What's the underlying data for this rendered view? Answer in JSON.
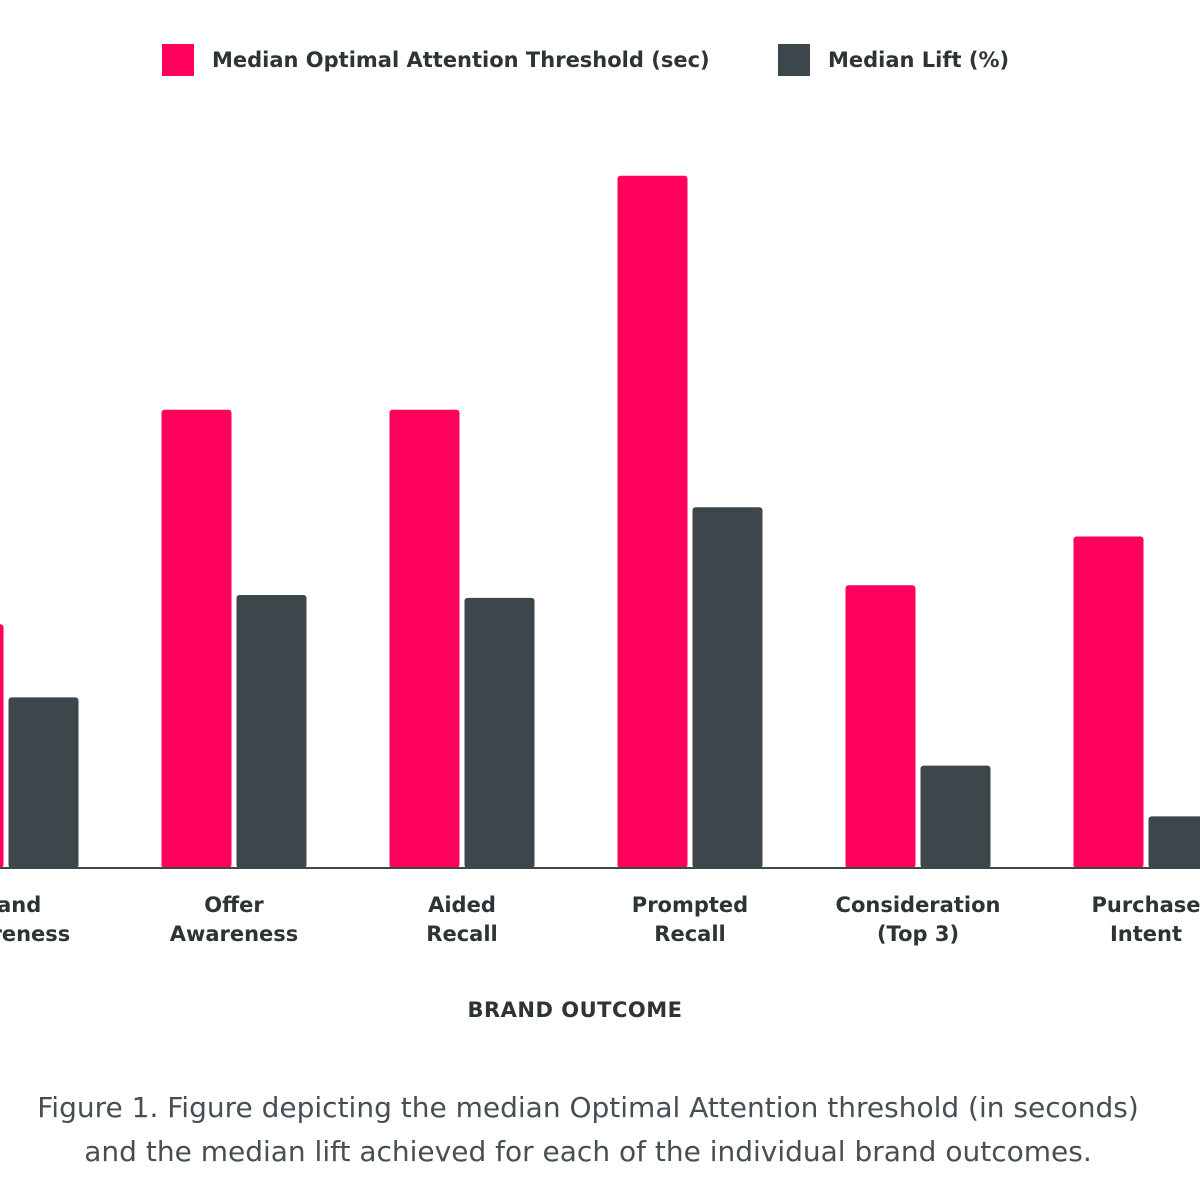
{
  "chart_data": {
    "type": "bar",
    "categories": [
      [
        "Brand",
        "Awareness"
      ],
      [
        "Offer",
        "Awareness"
      ],
      [
        "Aided",
        "Recall"
      ],
      [
        "Prompted",
        "Recall"
      ],
      [
        "Consideration",
        "(Top 3)"
      ],
      [
        "Purchase",
        "Intent"
      ]
    ],
    "series": [
      {
        "name": "Median Optimal Attention Threshold (sec)",
        "color": "#ff005c",
        "values": [
          2.5,
          4.7,
          4.7,
          7.1,
          2.9,
          3.4
        ]
      },
      {
        "name": "Median Lift (%)",
        "color": "#3d464b",
        "values": [
          1.75,
          2.8,
          2.77,
          3.7,
          1.05,
          0.53
        ]
      }
    ],
    "xlabel": "BRAND OUTCOME",
    "ylabel": "",
    "ylim": [
      0,
      8
    ],
    "grid": false,
    "legend": "top"
  },
  "caption": [
    "Figure 1. Figure depicting the median Optimal Attention threshold (in seconds)",
    "and the median lift achieved for each of the individual brand outcomes."
  ]
}
